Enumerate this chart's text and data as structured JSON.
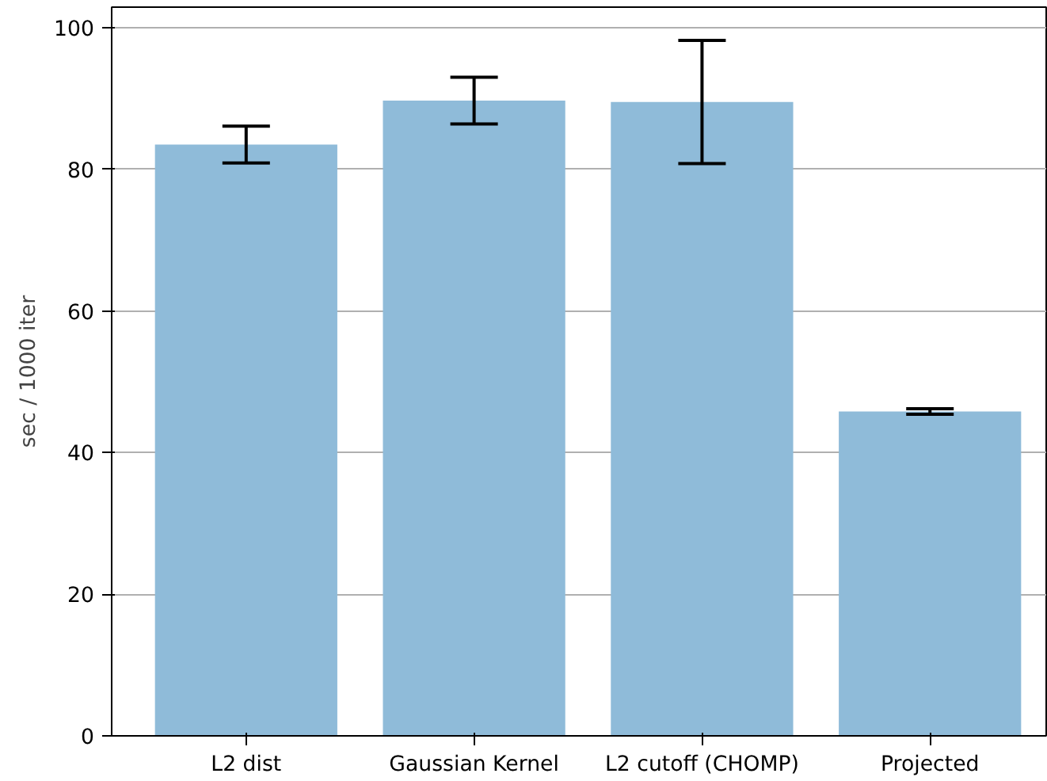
{
  "chart_data": {
    "type": "bar",
    "ylabel": "sec / 1000 iter",
    "categories": [
      "L2 dist",
      "Gaussian Kernel",
      "L2 cutoff (CHOMP)",
      "Projected"
    ],
    "values": [
      83.5,
      89.7,
      89.5,
      45.8
    ],
    "errors": [
      2.6,
      3.3,
      8.7,
      0.4
    ],
    "color": "#8fbbd9",
    "ylim": [
      0,
      102.9
    ],
    "yticks": [
      0,
      20,
      40,
      60,
      80,
      100
    ],
    "grid": "y"
  }
}
